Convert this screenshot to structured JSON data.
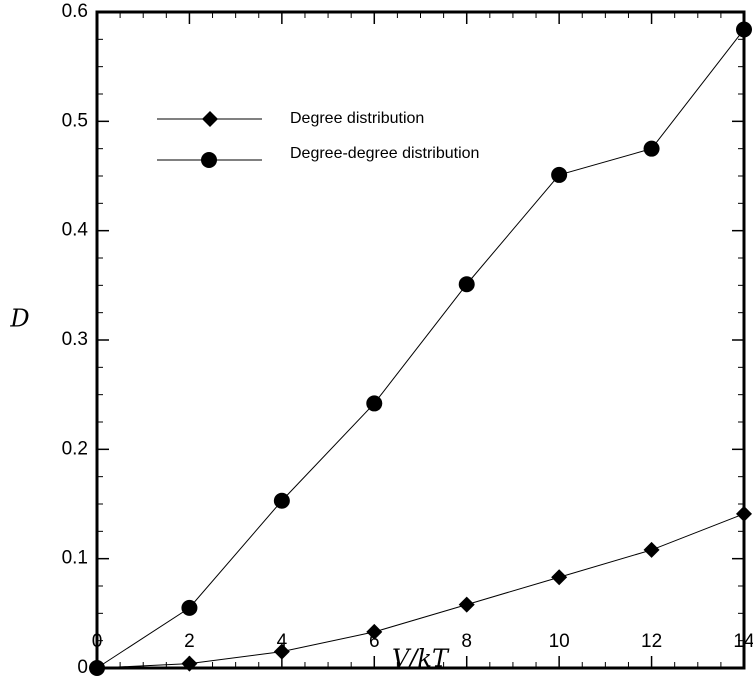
{
  "chart_data": {
    "type": "line",
    "xlabel": "V/kT",
    "ylabel": "D",
    "xlim": [
      0,
      14
    ],
    "ylim": [
      0,
      0.6
    ],
    "x": [
      0,
      2,
      4,
      6,
      8,
      10,
      12,
      14
    ],
    "x_ticks": [
      "0",
      "2",
      "4",
      "6",
      "8",
      "10",
      "12",
      "14"
    ],
    "y_ticks": [
      "0",
      "0.1",
      "0.2",
      "0.3",
      "0.4",
      "0.5",
      "0.6"
    ],
    "grid": false,
    "legend_position": "top-left",
    "series": [
      {
        "name": "Degree distribution",
        "marker": "diamond",
        "color": "#000000",
        "values": [
          0,
          0.004,
          0.015,
          0.033,
          0.058,
          0.083,
          0.108,
          0.141
        ]
      },
      {
        "name": "Degree-degree distribution",
        "marker": "circle",
        "color": "#000000",
        "values": [
          0,
          0.055,
          0.153,
          0.242,
          0.351,
          0.451,
          0.475,
          0.584
        ]
      }
    ]
  }
}
